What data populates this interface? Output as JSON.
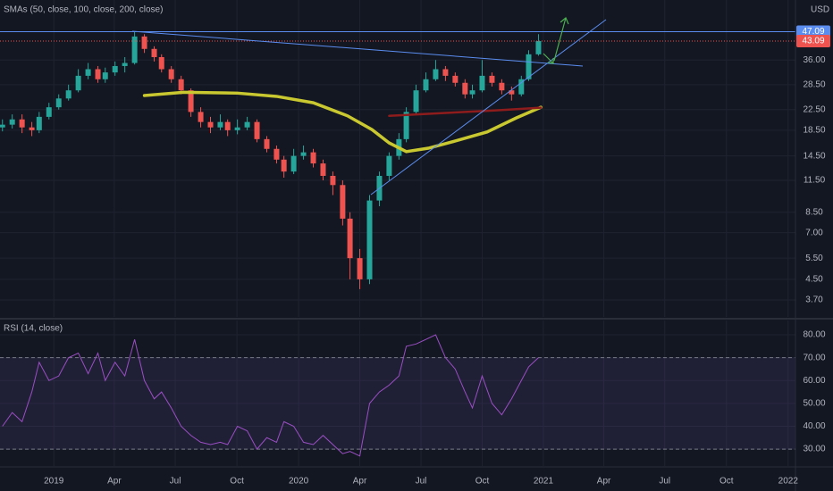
{
  "chart_data": [
    {
      "type": "candlestick",
      "title": "SMAs (50, close, 100, close, 200, close)",
      "currency": "USD",
      "log_scale": true,
      "grid": true,
      "up_color": "#26a69a",
      "down_color": "#ef5350",
      "x": [
        2018.79,
        2018.83,
        2018.87,
        2018.91,
        2018.94,
        2018.98,
        2019.02,
        2019.06,
        2019.1,
        2019.14,
        2019.18,
        2019.21,
        2019.25,
        2019.29,
        2019.33,
        2019.37,
        2019.41,
        2019.44,
        2019.48,
        2019.52,
        2019.56,
        2019.6,
        2019.64,
        2019.68,
        2019.71,
        2019.75,
        2019.79,
        2019.83,
        2019.87,
        2019.91,
        2019.94,
        2019.98,
        2020.02,
        2020.06,
        2020.1,
        2020.14,
        2020.18,
        2020.21,
        2020.25,
        2020.29,
        2020.33,
        2020.37,
        2020.41,
        2020.44,
        2020.48,
        2020.52,
        2020.56,
        2020.6,
        2020.64,
        2020.68,
        2020.71,
        2020.75,
        2020.79,
        2020.83,
        2020.87,
        2020.91,
        2020.94,
        2020.98
      ],
      "open": [
        19,
        19.5,
        20.5,
        19,
        18.5,
        21,
        23,
        25,
        27,
        31,
        33,
        30,
        32,
        34,
        35,
        45,
        40,
        37,
        33,
        30,
        27,
        22,
        20,
        19,
        20,
        18.5,
        19,
        20,
        17,
        15.5,
        14,
        12.5,
        14.5,
        15,
        13.5,
        12,
        11,
        8,
        5.5,
        4.5,
        9.5,
        12,
        14.5,
        17,
        22,
        27,
        30,
        33,
        31,
        29,
        26,
        27,
        31,
        29,
        27,
        26,
        30,
        38
      ],
      "high": [
        20.5,
        21.5,
        21.5,
        20,
        22,
        24,
        26,
        28.5,
        33,
        35,
        34,
        33.5,
        35.5,
        37,
        47.09,
        46,
        41,
        38,
        34,
        31,
        27.5,
        23,
        21,
        21.5,
        20.5,
        20.5,
        21,
        20.5,
        17.5,
        16,
        14.5,
        15.5,
        16,
        15.5,
        14,
        12.5,
        11.5,
        8.5,
        6,
        10,
        12.5,
        15,
        18,
        23,
        28.5,
        32,
        36,
        34,
        32,
        30,
        28.5,
        36,
        32,
        30,
        28,
        31,
        39.5,
        46
      ],
      "low": [
        18.3,
        18.8,
        18,
        17.5,
        18,
        20.5,
        22.5,
        24.5,
        26.5,
        30,
        29,
        29,
        31,
        32,
        34.5,
        38.5,
        35.5,
        32,
        29,
        26,
        21,
        19,
        18,
        18.5,
        17.5,
        17.8,
        18.5,
        16.5,
        15,
        13.5,
        11.8,
        12.2,
        14,
        13,
        11.5,
        10,
        7.5,
        4.5,
        4.1,
        4.3,
        9,
        11.5,
        14,
        16.5,
        21.5,
        26.5,
        29.5,
        29.5,
        28,
        25,
        25,
        26.5,
        28,
        26,
        24.5,
        25.5,
        29.5,
        37.5
      ],
      "close": [
        19.5,
        20.5,
        19,
        18.5,
        21,
        23,
        25,
        27,
        31,
        33,
        30,
        32,
        34,
        35,
        45,
        40,
        37,
        33,
        30,
        27,
        22,
        20,
        19,
        20,
        18.5,
        19,
        20,
        17,
        15.5,
        14,
        12.5,
        14.5,
        15,
        13.5,
        12,
        11,
        8,
        5.5,
        4.5,
        9.5,
        12,
        14.5,
        17,
        22,
        27,
        30,
        33,
        31,
        29,
        26,
        27,
        31,
        29,
        27,
        26,
        30,
        38,
        43.09
      ],
      "series": [
        {
          "color": "#c9c830",
          "x": [
            2019.37,
            2019.53,
            2019.75,
            2019.91,
            2020.06,
            2020.2,
            2020.3,
            2020.37,
            2020.44,
            2020.53,
            2020.64,
            2020.77,
            2020.89,
            2020.99
          ],
          "values": [
            25.7,
            26.5,
            26.3,
            25.5,
            24,
            21.2,
            18.6,
            16.4,
            15.1,
            15.6,
            16.7,
            18.2,
            20.8,
            23.0
          ]
        },
        {
          "color": "#8e1c1c",
          "x": [
            2020.37,
            2020.6,
            2020.8,
            2020.99
          ],
          "values": [
            21.2,
            21.8,
            22.3,
            22.9
          ]
        }
      ],
      "hline": 47.09,
      "hline_color": "#5b8df0",
      "last_price": 43.09,
      "last_price_color": "#ef5350",
      "xlim": [
        2018.78,
        2022.03
      ],
      "ylim": [
        3.15,
        63.6
      ],
      "yticks": [
        {
          "value": 3.7,
          "label": "3.70"
        },
        {
          "value": 4.5,
          "label": "4.50"
        },
        {
          "value": 5.5,
          "label": "5.50"
        },
        {
          "value": 7,
          "label": "7.00"
        },
        {
          "value": 8.5,
          "label": "8.50"
        },
        {
          "value": 11.5,
          "label": "11.50"
        },
        {
          "value": 14.5,
          "label": "14.50"
        },
        {
          "value": 18.5,
          "label": "18.50"
        },
        {
          "value": 22.5,
          "label": "22.50"
        },
        {
          "value": 28.5,
          "label": "28.50"
        },
        {
          "value": 36,
          "label": "36.00"
        }
      ],
      "xticks": [
        2019,
        {
          "value": 2019.247,
          "label": "Apr"
        },
        {
          "value": 2019.496,
          "label": "Jul"
        },
        {
          "value": 2019.748,
          "label": "Oct"
        },
        2020,
        {
          "value": 2020.25,
          "label": "Apr"
        },
        {
          "value": 2020.5,
          "label": "Jul"
        },
        {
          "value": 2020.75,
          "label": "Oct"
        },
        2021,
        {
          "value": 2021.247,
          "label": "Apr"
        },
        {
          "value": 2021.496,
          "label": "Jul"
        },
        {
          "value": 2021.748,
          "label": "Oct"
        },
        2022
      ]
    },
    {
      "type": "line",
      "title": "RSI (14, close)",
      "color": "#9b4fc4",
      "bands": [
        30,
        70
      ],
      "x": [
        2018.79,
        2018.83,
        2018.87,
        2018.91,
        2018.94,
        2018.98,
        2019.02,
        2019.06,
        2019.1,
        2019.14,
        2019.18,
        2019.21,
        2019.25,
        2019.29,
        2019.33,
        2019.37,
        2019.41,
        2019.44,
        2019.48,
        2019.52,
        2019.56,
        2019.6,
        2019.64,
        2019.68,
        2019.71,
        2019.75,
        2019.79,
        2019.83,
        2019.87,
        2019.91,
        2019.94,
        2019.98,
        2020.02,
        2020.06,
        2020.1,
        2020.14,
        2020.18,
        2020.21,
        2020.25,
        2020.29,
        2020.33,
        2020.37,
        2020.41,
        2020.44,
        2020.48,
        2020.52,
        2020.56,
        2020.6,
        2020.64,
        2020.68,
        2020.71,
        2020.75,
        2020.79,
        2020.83,
        2020.87,
        2020.91,
        2020.94,
        2020.98
      ],
      "values": [
        40,
        46,
        42,
        55,
        68,
        60,
        62,
        70,
        72,
        63,
        72,
        60,
        68,
        62,
        78,
        60,
        52,
        55,
        48,
        40,
        36,
        33,
        32,
        33,
        32,
        40,
        38,
        30,
        35,
        33,
        42,
        40,
        33,
        32,
        36,
        32,
        28,
        29,
        27,
        50,
        55,
        58,
        62,
        75,
        76,
        78,
        80,
        70,
        65,
        55,
        48,
        62,
        50,
        45,
        52,
        60,
        66,
        70
      ],
      "ylim": [
        23.4,
        85.1
      ],
      "yticks": [
        {
          "value": 30,
          "label": "30.00"
        },
        {
          "value": 40,
          "label": "40.00"
        },
        {
          "value": 50,
          "label": "50.00"
        },
        {
          "value": 60,
          "label": "60.00"
        },
        {
          "value": 70,
          "label": "70.00"
        },
        {
          "value": 80,
          "label": "80.00"
        }
      ]
    }
  ]
}
